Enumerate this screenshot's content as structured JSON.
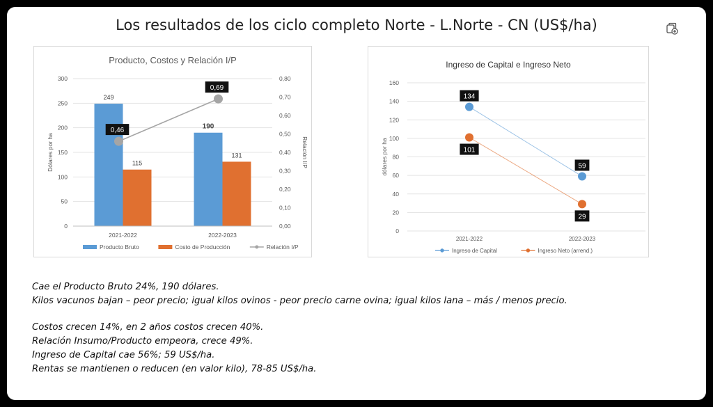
{
  "slide": {
    "title": "Los resultados de los ciclo completo Norte - L.Norte - CN (US$/ha)",
    "icon": "copy-add-icon"
  },
  "chart_data": [
    {
      "type": "bar",
      "title": "Producto, Costos y Relación I/P",
      "categories": [
        "2021-2022",
        "2022-2023"
      ],
      "ylabel": "Dólares por ha",
      "y2label": "Relación I/P",
      "ylim": [
        0,
        300
      ],
      "yticks": [
        "0",
        "50",
        "100",
        "150",
        "200",
        "250",
        "300"
      ],
      "y2lim": [
        0,
        0.8
      ],
      "y2ticks": [
        "0,00",
        "0,10",
        "0,20",
        "0,30",
        "0,40",
        "0,50",
        "0,60",
        "0,70",
        "0,80"
      ],
      "series": [
        {
          "name": "Producto Bruto",
          "type": "bar",
          "color": "#5B9BD5",
          "values": [
            249,
            190
          ],
          "labels": [
            "249",
            "190"
          ]
        },
        {
          "name": "Costo de Producción",
          "type": "bar",
          "color": "#E07030",
          "values": [
            115,
            131
          ],
          "labels": [
            "115",
            "131"
          ]
        },
        {
          "name": "Relación I/P",
          "type": "line",
          "axis": "secondary",
          "color": "#A5A5A5",
          "values": [
            0.46,
            0.69
          ],
          "labels": [
            "0,46",
            "0,69"
          ]
        }
      ],
      "legend": "bottom",
      "grid": true
    },
    {
      "type": "line",
      "title": "Ingreso de Capital e Ingreso Neto",
      "categories": [
        "2021-2022",
        "2022-2023"
      ],
      "ylabel": "dólares por ha",
      "ylim": [
        0,
        160
      ],
      "yticks": [
        "0",
        "20",
        "40",
        "60",
        "80",
        "100",
        "120",
        "140",
        "160"
      ],
      "series": [
        {
          "name": "Ingreso de Capital",
          "color": "#5B9BD5",
          "values": [
            134,
            59
          ],
          "labels": [
            "134",
            "59"
          ]
        },
        {
          "name": "Ingreso Neto (arrend.)",
          "color": "#E07030",
          "values": [
            101,
            29
          ],
          "labels": [
            "101",
            "29"
          ]
        }
      ],
      "legend": "bottom",
      "grid": true
    }
  ],
  "notes": {
    "line1": "Cae el Producto Bruto 24%, 190 dólares.",
    "line2": "Kilos vacunos bajan – peor precio; igual kilos ovinos - peor precio carne ovina; igual kilos lana –  más / menos precio.",
    "line3": "Costos crecen 14%, en 2 años costos crecen 40%.",
    "line4": "Relación Insumo/Producto empeora, crece 49%.",
    "line5": "Ingreso de Capital  cae 56%;  59 US$/ha.",
    "line6": "Rentas se mantienen o reducen (en valor kilo), 78-85 US$/ha."
  }
}
